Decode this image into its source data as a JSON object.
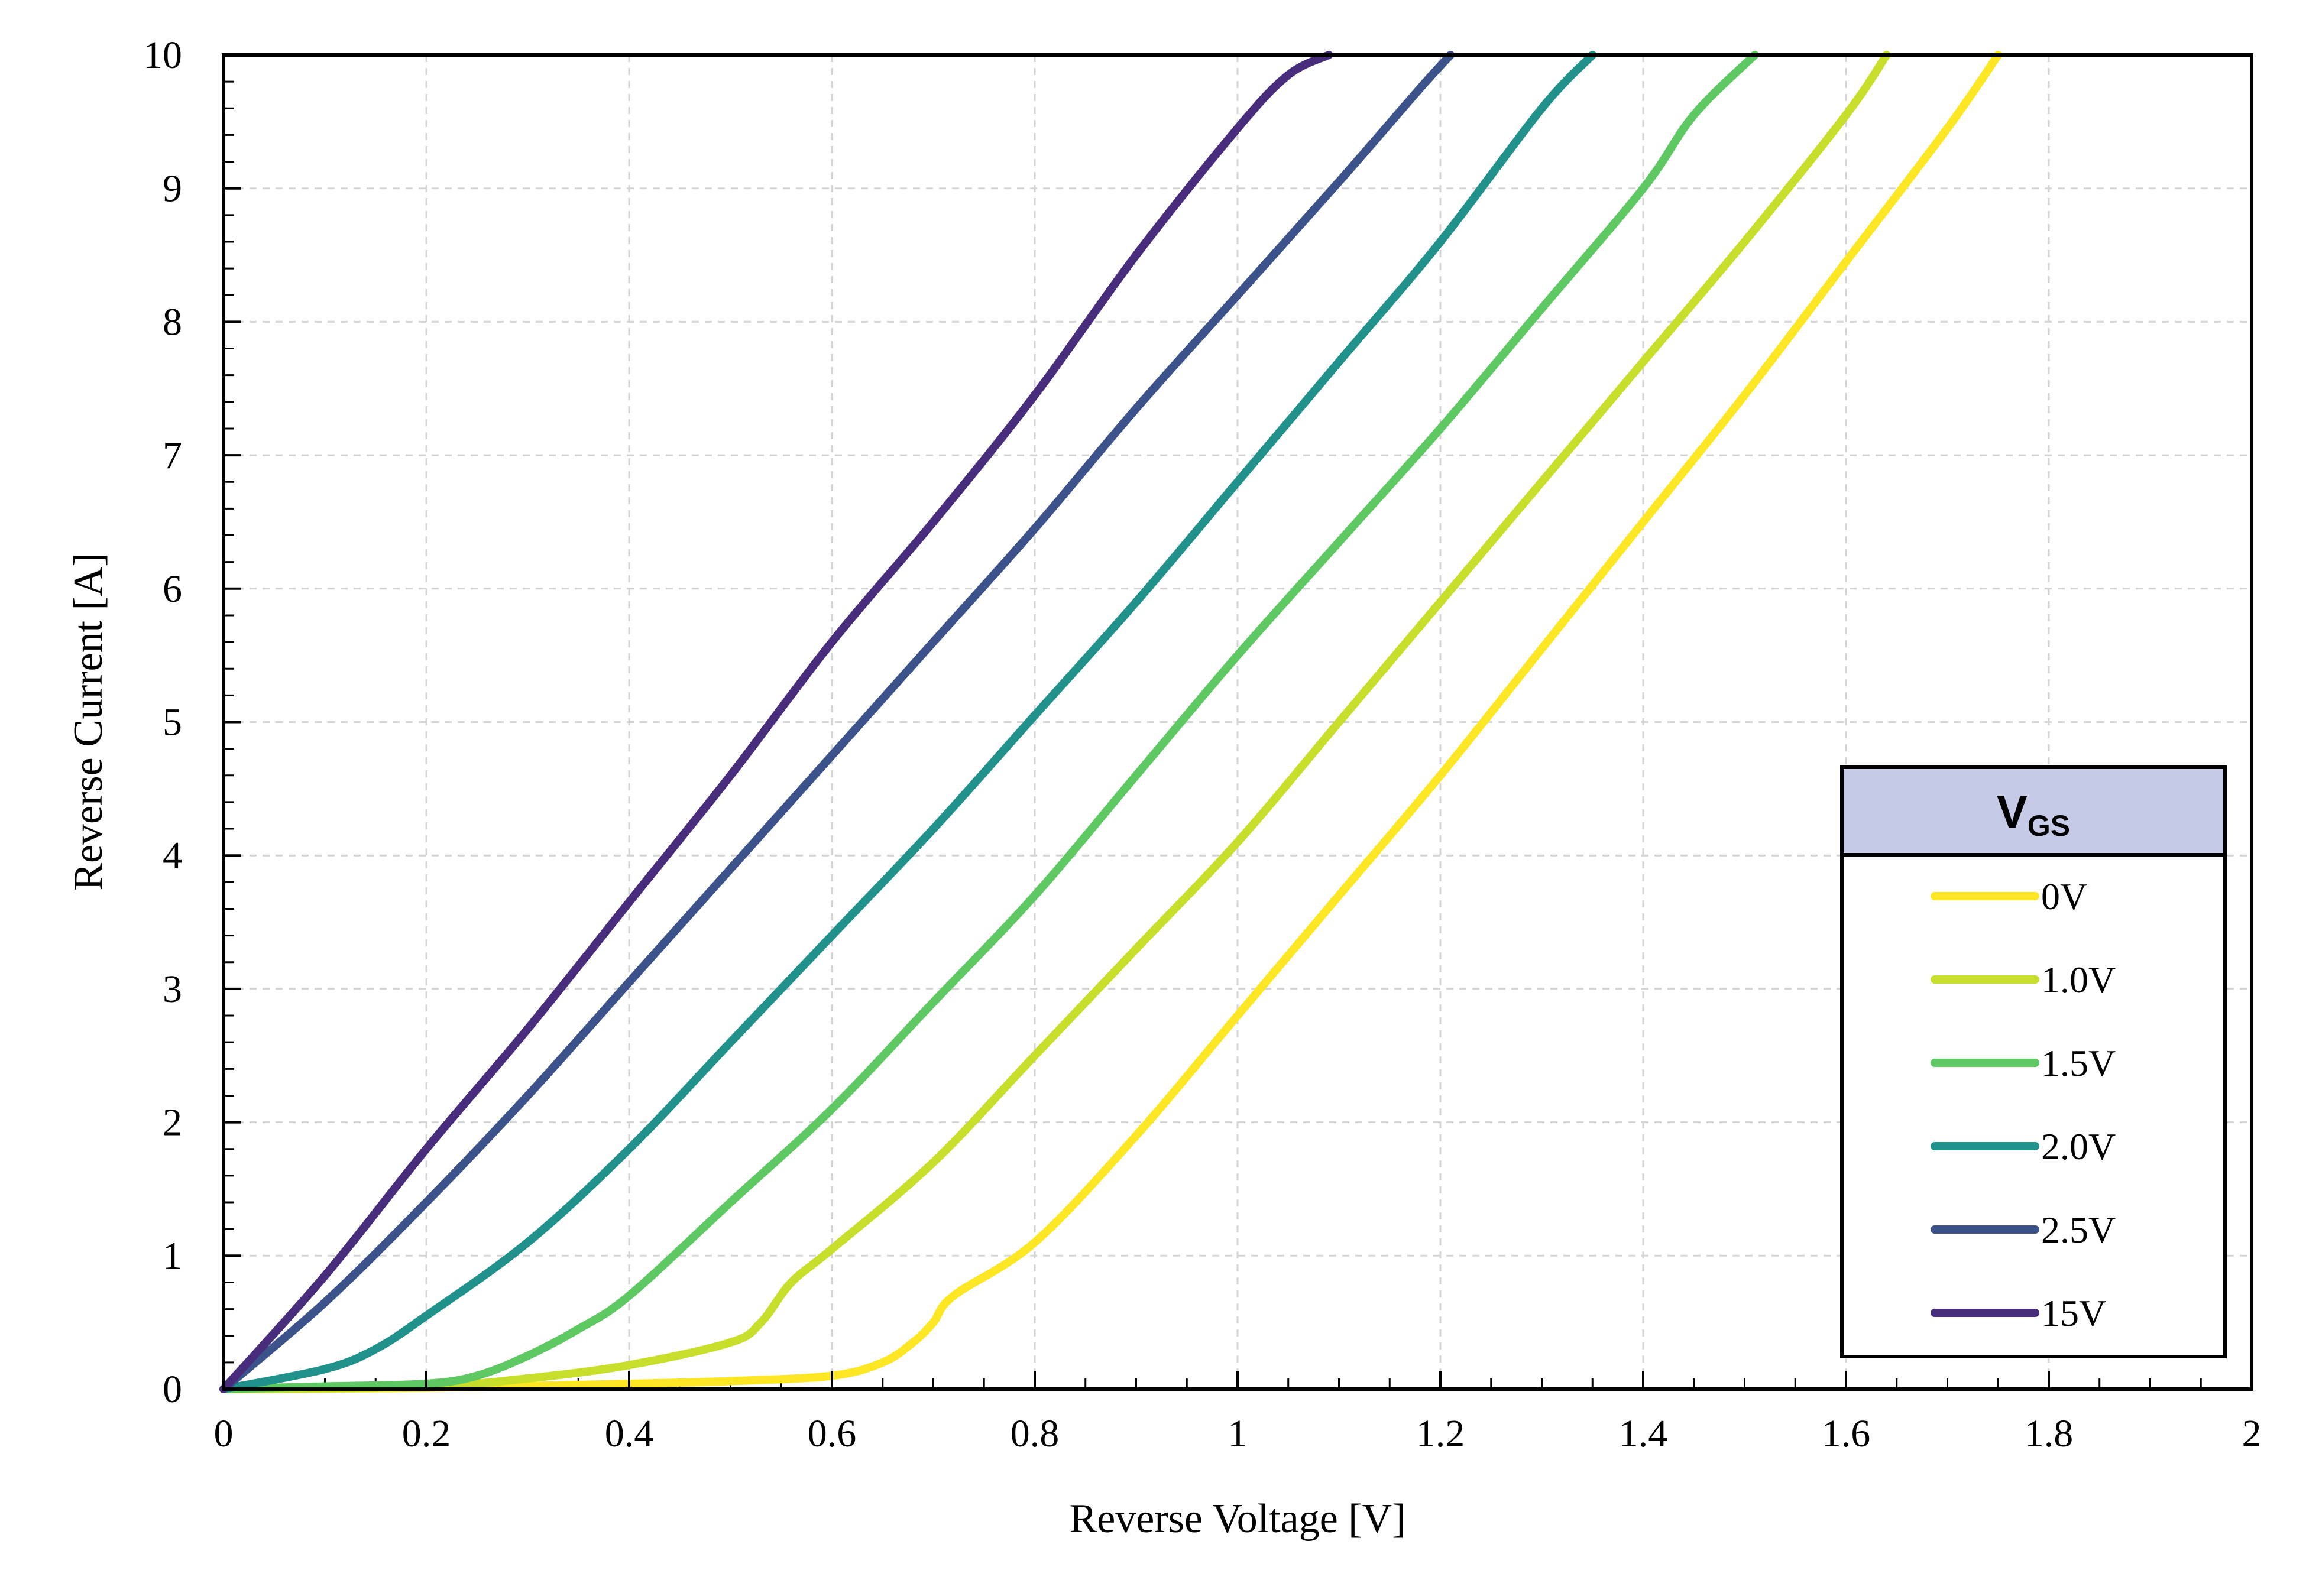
{
  "chart_data": {
    "type": "line",
    "xlabel": "Reverse Voltage [V]",
    "ylabel": "Reverse Current [A]",
    "xlim": [
      0,
      2
    ],
    "ylim": [
      0,
      10
    ],
    "x_ticks": [
      "0",
      "0.2",
      "0.4",
      "0.6",
      "0.8",
      "1",
      "1.2",
      "1.4",
      "1.6",
      "1.8",
      "2"
    ],
    "y_ticks": [
      "0",
      "1",
      "2",
      "3",
      "4",
      "5",
      "6",
      "7",
      "8",
      "9",
      "10"
    ],
    "grid": true,
    "legend": {
      "title_main": "V",
      "title_sub": "GS",
      "position": "bottom-right",
      "header_color": "#c5cae6"
    },
    "series": [
      {
        "name": "0V",
        "color": "#fde725",
        "x": [
          0,
          0.2,
          0.4,
          0.5,
          0.6,
          0.65,
          0.68,
          0.7,
          0.72,
          0.8,
          0.9,
          1.0,
          1.1,
          1.2,
          1.3,
          1.4,
          1.5,
          1.6,
          1.7,
          1.75
        ],
        "y": [
          0,
          0.01,
          0.04,
          0.06,
          0.1,
          0.2,
          0.35,
          0.5,
          0.7,
          1.1,
          1.9,
          2.8,
          3.7,
          4.6,
          5.55,
          6.5,
          7.45,
          8.45,
          9.45,
          10
        ]
      },
      {
        "name": "1.0V",
        "color": "#c7de2b",
        "x": [
          0,
          0.2,
          0.3,
          0.4,
          0.5,
          0.53,
          0.56,
          0.6,
          0.7,
          0.8,
          0.9,
          1.0,
          1.1,
          1.2,
          1.3,
          1.4,
          1.5,
          1.6,
          1.64
        ],
        "y": [
          0,
          0.02,
          0.08,
          0.18,
          0.35,
          0.5,
          0.8,
          1.05,
          1.7,
          2.5,
          3.3,
          4.1,
          5.0,
          5.9,
          6.8,
          7.7,
          8.6,
          9.55,
          10
        ]
      },
      {
        "name": "1.5V",
        "color": "#5ec962",
        "x": [
          0,
          0.1,
          0.2,
          0.25,
          0.3,
          0.35,
          0.4,
          0.5,
          0.6,
          0.7,
          0.8,
          0.9,
          1.0,
          1.1,
          1.2,
          1.3,
          1.4,
          1.45,
          1.51
        ],
        "y": [
          0,
          0.02,
          0.04,
          0.1,
          0.25,
          0.45,
          0.7,
          1.4,
          2.1,
          2.9,
          3.7,
          4.6,
          5.5,
          6.35,
          7.2,
          8.1,
          9.0,
          9.55,
          10
        ]
      },
      {
        "name": "2.0V",
        "color": "#21918c",
        "x": [
          0,
          0.1,
          0.15,
          0.2,
          0.3,
          0.4,
          0.5,
          0.6,
          0.7,
          0.8,
          0.9,
          1.0,
          1.1,
          1.2,
          1.3,
          1.35
        ],
        "y": [
          0,
          0.15,
          0.3,
          0.55,
          1.1,
          1.8,
          2.6,
          3.4,
          4.2,
          5.05,
          5.9,
          6.8,
          7.7,
          8.6,
          9.6,
          10
        ]
      },
      {
        "name": "2.5V",
        "color": "#3b528b",
        "x": [
          0,
          0.1,
          0.2,
          0.3,
          0.4,
          0.5,
          0.6,
          0.7,
          0.8,
          0.9,
          1.0,
          1.1,
          1.18,
          1.21
        ],
        "y": [
          0,
          0.65,
          1.4,
          2.2,
          3.05,
          3.9,
          4.75,
          5.6,
          6.45,
          7.35,
          8.2,
          9.05,
          9.75,
          10
        ]
      },
      {
        "name": "15V",
        "color": "#472d7b",
        "x": [
          0,
          0.1,
          0.2,
          0.3,
          0.4,
          0.5,
          0.6,
          0.7,
          0.8,
          0.9,
          1.0,
          1.05,
          1.09
        ],
        "y": [
          0,
          0.85,
          1.8,
          2.7,
          3.65,
          4.6,
          5.6,
          6.5,
          7.45,
          8.5,
          9.45,
          9.85,
          10
        ]
      }
    ]
  }
}
